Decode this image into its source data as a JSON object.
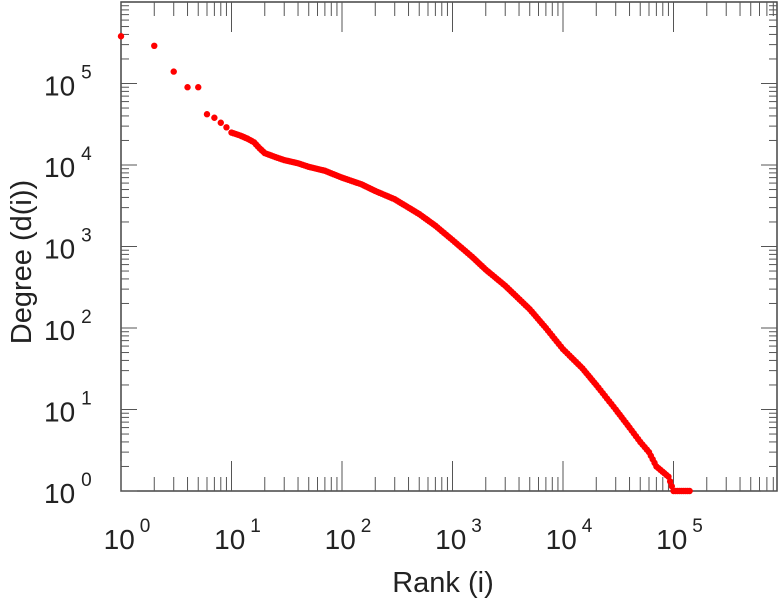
{
  "chart_data": {
    "type": "scatter",
    "xlabel": "Rank (i)",
    "ylabel": "Degree (d(i))",
    "x_scale": "log",
    "y_scale": "log",
    "xlim": [
      1,
      1000000
    ],
    "ylim": [
      1,
      1000000
    ],
    "x_ticks": [
      {
        "base": "10",
        "exp": "0",
        "value": 1
      },
      {
        "base": "10",
        "exp": "1",
        "value": 10
      },
      {
        "base": "10",
        "exp": "2",
        "value": 100
      },
      {
        "base": "10",
        "exp": "3",
        "value": 1000
      },
      {
        "base": "10",
        "exp": "4",
        "value": 10000
      },
      {
        "base": "10",
        "exp": "5",
        "value": 100000
      }
    ],
    "y_ticks": [
      {
        "base": "10",
        "exp": "0",
        "value": 1
      },
      {
        "base": "10",
        "exp": "1",
        "value": 10
      },
      {
        "base": "10",
        "exp": "2",
        "value": 100
      },
      {
        "base": "10",
        "exp": "3",
        "value": 1000
      },
      {
        "base": "10",
        "exp": "4",
        "value": 10000
      },
      {
        "base": "10",
        "exp": "5",
        "value": 100000
      }
    ],
    "grid": false,
    "marker_color": "#ff0000",
    "series": [
      {
        "points": [
          [
            1,
            380000
          ],
          [
            2,
            290000
          ],
          [
            3,
            140000
          ],
          [
            4,
            90000
          ],
          [
            5,
            90000
          ],
          [
            6,
            42000
          ],
          [
            7,
            38000
          ],
          [
            8,
            33000
          ],
          [
            9,
            29000
          ],
          [
            10,
            25000
          ],
          [
            12,
            23000
          ],
          [
            14,
            21000
          ],
          [
            16,
            19000
          ],
          [
            18,
            16000
          ],
          [
            20,
            14000
          ],
          [
            25,
            12500
          ],
          [
            30,
            11500
          ],
          [
            40,
            10500
          ],
          [
            50,
            9500
          ],
          [
            70,
            8500
          ],
          [
            100,
            7000
          ],
          [
            150,
            5800
          ],
          [
            200,
            4800
          ],
          [
            300,
            3800
          ],
          [
            500,
            2500
          ],
          [
            700,
            1800
          ],
          [
            1000,
            1200
          ],
          [
            1500,
            750
          ],
          [
            2000,
            520
          ],
          [
            3000,
            330
          ],
          [
            5000,
            170
          ],
          [
            7000,
            100
          ],
          [
            10000,
            55
          ],
          [
            15000,
            32
          ],
          [
            20000,
            20
          ],
          [
            30000,
            10
          ],
          [
            40000,
            6
          ],
          [
            50000,
            4
          ],
          [
            60000,
            3
          ],
          [
            70000,
            2
          ],
          [
            90000,
            1.5
          ],
          [
            100000,
            1
          ],
          [
            140000,
            1
          ]
        ]
      }
    ]
  }
}
